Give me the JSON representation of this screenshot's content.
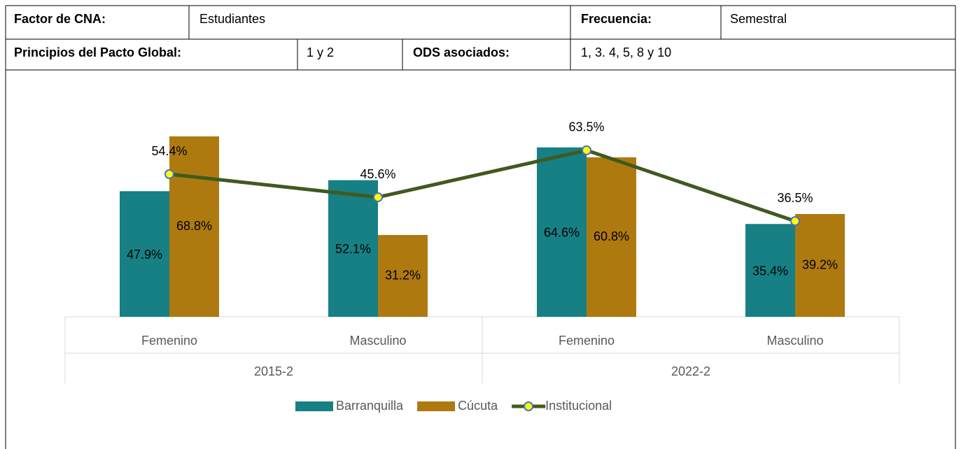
{
  "table": {
    "rows": [
      [
        "Factor de CNA:",
        "Estudiantes",
        "Frecuencia:",
        "Semestral"
      ],
      [
        "Principios del Pacto Global:",
        "1 y 2",
        "ODS asociados:",
        "1, 3. 4, 5, 8 y 10"
      ]
    ]
  },
  "chart_data": {
    "type": "bar_line",
    "categories": [
      "Femenino",
      "Masculino",
      "Femenino",
      "Masculino"
    ],
    "group_labels": [
      "2015-2",
      "2022-2"
    ],
    "ylim": [
      0,
      80
    ],
    "series": [
      {
        "name": "Barranquilla",
        "type": "bar",
        "color": "#168084",
        "values": [
          47.9,
          52.1,
          64.6,
          35.4
        ],
        "value_labels": [
          "47.9%",
          "52.1%",
          "64.6%",
          "35.4%"
        ]
      },
      {
        "name": "Cúcuta",
        "type": "bar",
        "color": "#ae7a10",
        "values": [
          68.8,
          31.2,
          60.8,
          39.2
        ],
        "value_labels": [
          "68.8%",
          "31.2%",
          "60.8%",
          "39.2%"
        ]
      },
      {
        "name": "Institucional",
        "type": "line",
        "color": "#3f5a20",
        "values": [
          54.4,
          45.6,
          63.5,
          36.5
        ],
        "value_labels": [
          "54.4%",
          "45.6%",
          "63.5%",
          "36.5%"
        ]
      }
    ]
  }
}
